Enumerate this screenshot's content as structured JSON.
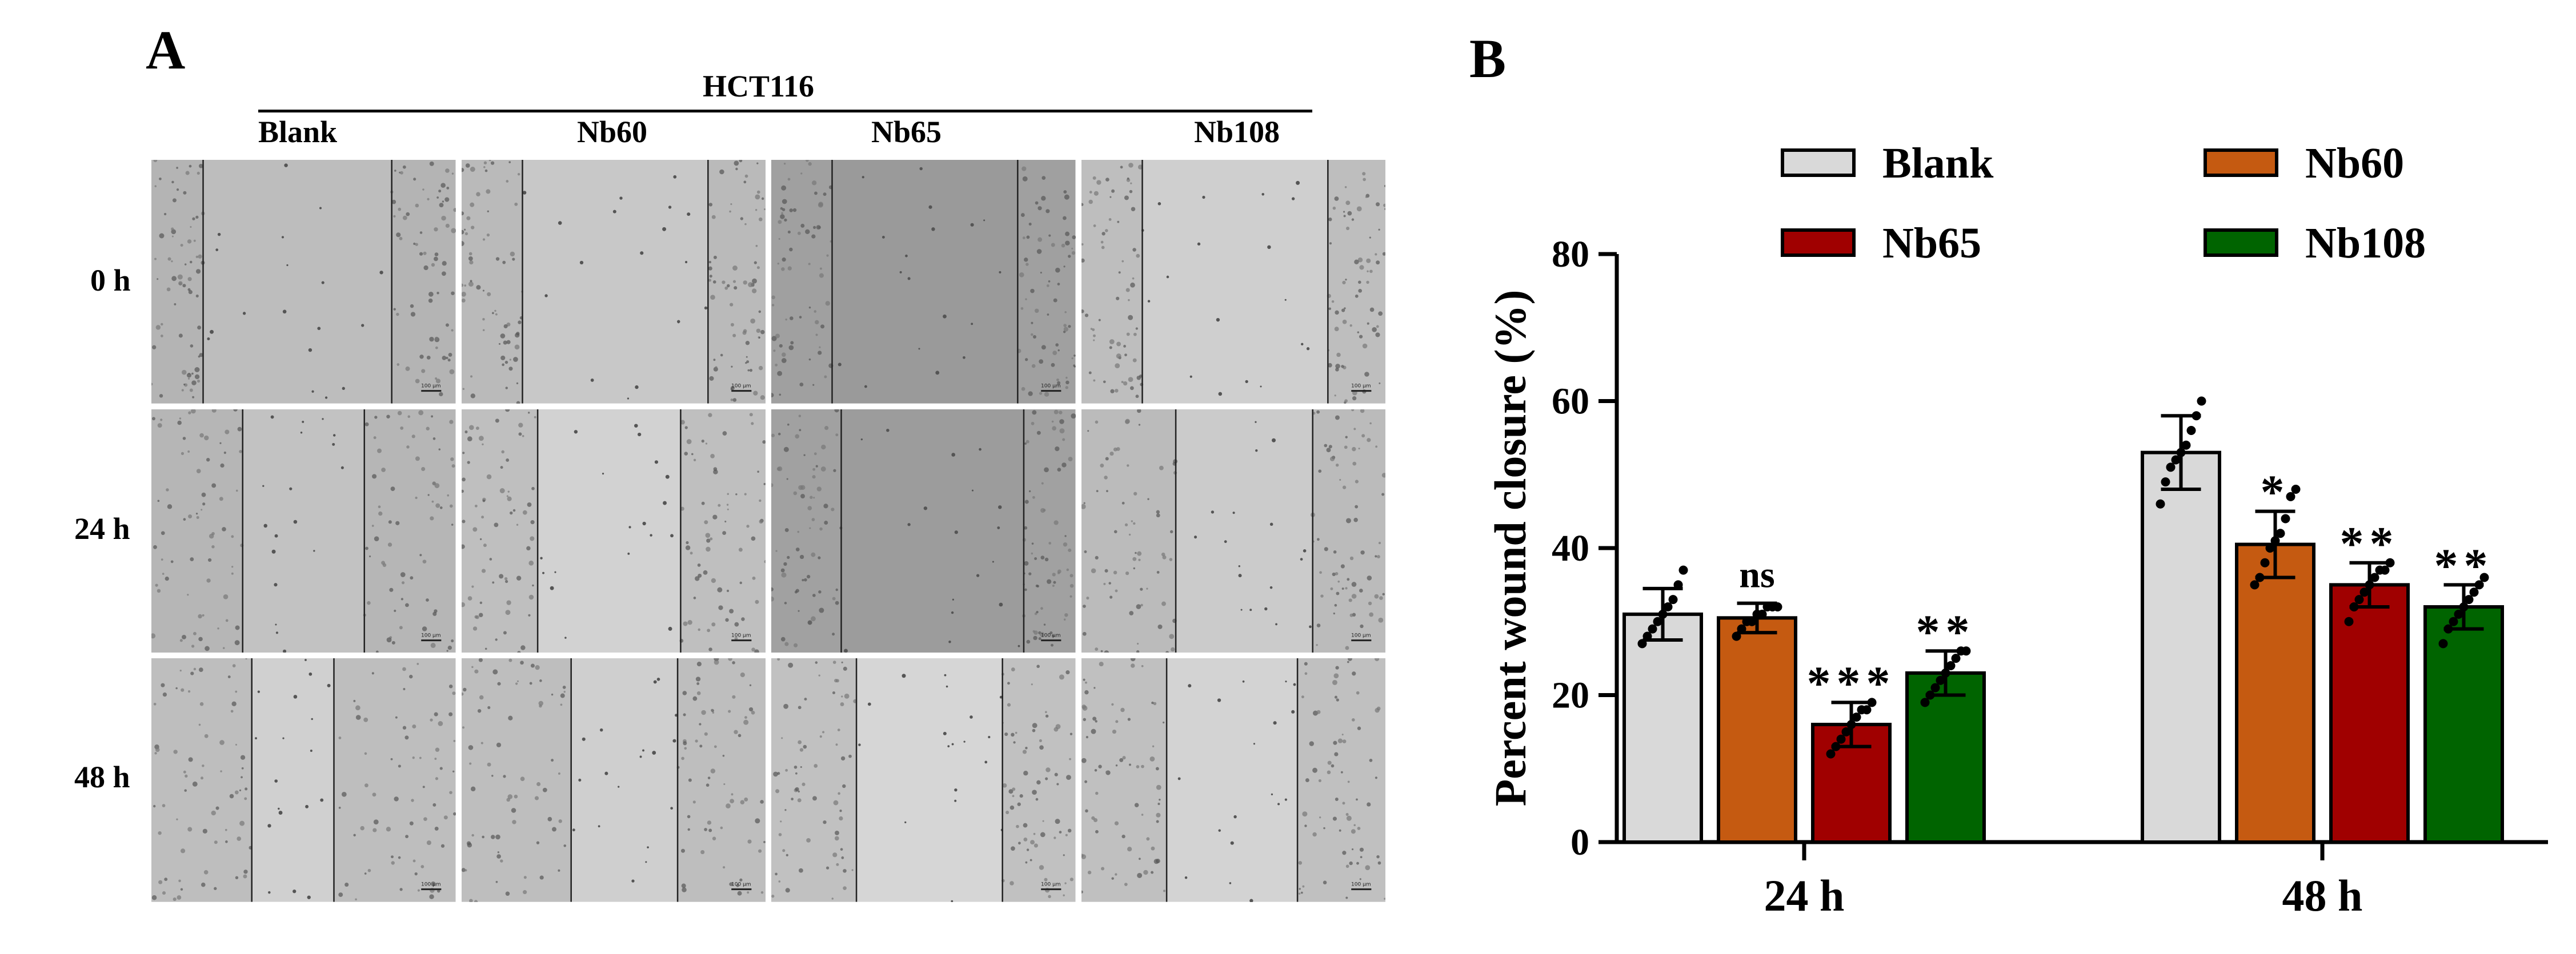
{
  "panel_a": {
    "letter": "A",
    "cell_line": "HCT116",
    "columns": [
      "Blank",
      "Nb60",
      "Nb65",
      "Nb108"
    ],
    "rows": [
      "0 h",
      "24 h",
      "48 h"
    ],
    "scale_bar_label": "100 μm"
  },
  "panel_b": {
    "letter": "B"
  },
  "colors": {
    "Blank": "#d9d9d9",
    "Nb60": "#c55a11",
    "Nb65": "#a00000",
    "Nb108": "#006400"
  },
  "chart_data": {
    "type": "bar",
    "title": "",
    "ylabel": "Percent wound closure (%)",
    "xlabel": "",
    "ylim": [
      0,
      80
    ],
    "yticks": [
      0,
      20,
      40,
      60,
      80
    ],
    "categories": [
      "24 h",
      "48 h"
    ],
    "series": [
      {
        "name": "Blank",
        "values": [
          31,
          53
        ],
        "errors": [
          3.5,
          5
        ],
        "significance": [
          "",
          ""
        ],
        "points": [
          [
            27,
            28,
            29,
            30,
            31,
            32,
            33,
            35,
            37
          ],
          [
            46,
            49,
            51,
            52,
            53,
            54,
            56,
            58,
            60
          ]
        ]
      },
      {
        "name": "Nb60",
        "values": [
          30.5,
          40.5
        ],
        "errors": [
          2,
          4.5
        ],
        "significance": [
          "ns",
          "*"
        ],
        "points": [
          [
            28,
            29,
            30,
            30,
            31,
            31,
            32,
            32,
            32
          ],
          [
            35,
            36,
            38,
            40,
            41,
            42,
            44,
            47,
            48
          ]
        ]
      },
      {
        "name": "Nb65",
        "values": [
          16,
          35
        ],
        "errors": [
          3,
          3
        ],
        "significance": [
          "***",
          "**"
        ],
        "points": [
          [
            12,
            13,
            14,
            15,
            16,
            17,
            18,
            18,
            19
          ],
          [
            30,
            32,
            33,
            34,
            35,
            36,
            37,
            37,
            38
          ]
        ]
      },
      {
        "name": "Nb108",
        "values": [
          23,
          32
        ],
        "errors": [
          3,
          3
        ],
        "significance": [
          "**",
          "**"
        ],
        "points": [
          [
            19,
            20,
            21,
            22,
            23,
            24,
            25,
            26,
            26
          ],
          [
            27,
            29,
            30,
            31,
            32,
            33,
            34,
            35,
            36
          ]
        ]
      }
    ],
    "legend": {
      "placement": "top",
      "columns": 2
    },
    "grid": false
  }
}
